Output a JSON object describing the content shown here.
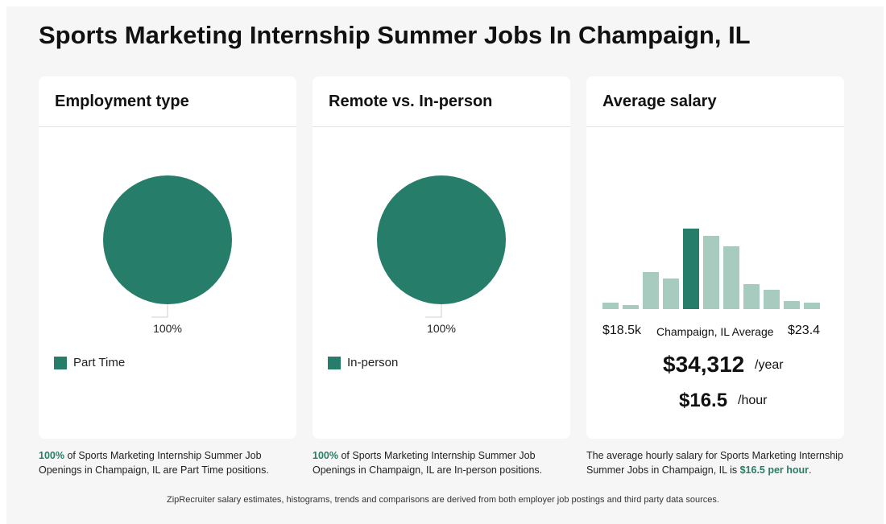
{
  "page": {
    "title": "Sports Marketing Internship Summer Jobs In Champaign, IL"
  },
  "colors": {
    "primary": "#267d69",
    "primary_light": "#a8cbc0",
    "highlight_text": "#2a7d66"
  },
  "employment": {
    "title": "Employment type",
    "legend": "Part Time",
    "caption_pct": "100%",
    "caption_text": " of Sports Marketing Internship Summer Job Openings in Champaign, IL are Part Time positions."
  },
  "remote": {
    "title": "Remote vs. In-person",
    "legend": "In-person",
    "caption_pct": "100%",
    "caption_text": " of Sports Marketing Internship Summer Job Openings in Champaign, IL are In-person positions."
  },
  "salary": {
    "title": "Average salary",
    "min_label": "$18.5k",
    "mid_label": "Champaign, IL Average",
    "max_label": "$23.4",
    "yearly": "$34,312",
    "yearly_unit": "/year",
    "hourly": "$16.5",
    "hourly_unit": "/hour",
    "caption_text": "The average hourly salary for Sports Marketing Internship Summer Jobs in Champaign, IL is ",
    "caption_highlight": "$16.5 per hour",
    "caption_end": "."
  },
  "chart_data": [
    {
      "type": "pie",
      "slices": [
        {
          "label": "Part Time",
          "value": 100,
          "value_label": "100%"
        }
      ]
    },
    {
      "type": "pie",
      "slices": [
        {
          "label": "In-person",
          "value": 100,
          "value_label": "100%"
        }
      ]
    },
    {
      "type": "bar",
      "values": [
        8,
        5,
        46,
        38,
        100,
        91,
        78,
        31,
        24,
        10,
        8
      ],
      "highlight_index": 4,
      "xlabel": "",
      "ylabel": ""
    }
  ],
  "footer": "ZipRecruiter salary estimates, histograms, trends and comparisons are derived from both employer job postings and third party data sources."
}
